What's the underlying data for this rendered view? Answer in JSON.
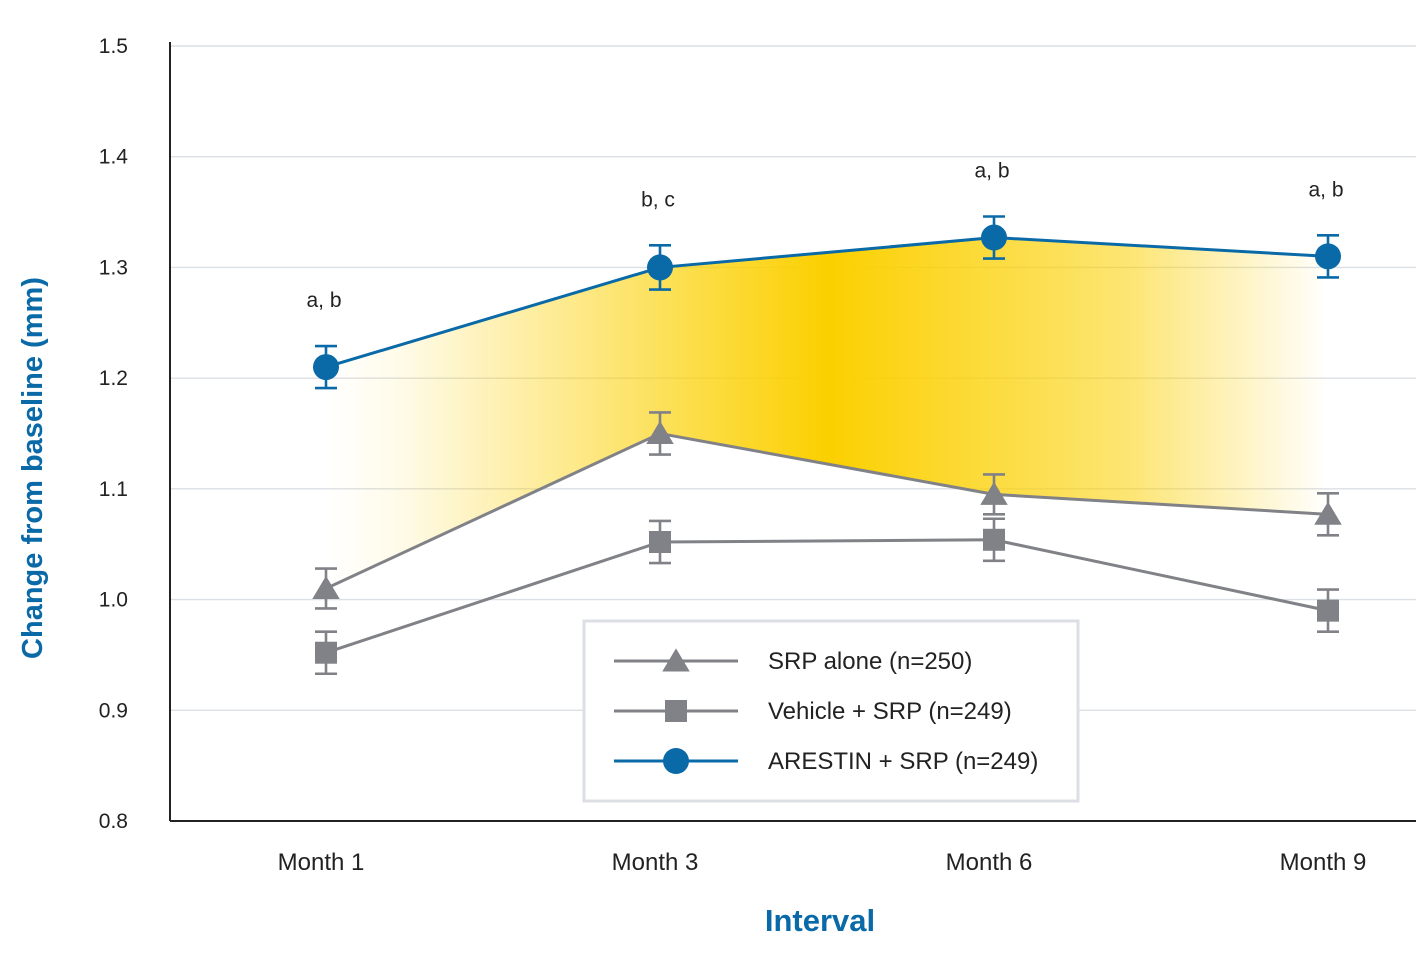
{
  "chart_data": {
    "type": "line",
    "xlabel": "Interval",
    "ylabel": "Change from baseline (mm)",
    "categories": [
      "Month 1",
      "Month 3",
      "Month 6",
      "Month 9"
    ],
    "ylim": [
      0.8,
      1.5
    ],
    "yticks": [
      "0.8",
      "0.9",
      "1.0",
      "1.1",
      "1.2",
      "1.3",
      "1.4",
      "1.5"
    ],
    "grid": true,
    "legend_position": "bottom-center",
    "annotations": [
      "a, b",
      "b, c",
      "a, b",
      "a, b"
    ],
    "highlight_band": {
      "between": [
        "ARESTIN + SRP (n=249)",
        "SRP alone (n=250)"
      ],
      "color": "#fbd000"
    },
    "series": [
      {
        "name": "SRP alone (n=250)",
        "marker": "triangle",
        "color": "#808287",
        "values": [
          1.01,
          1.15,
          1.095,
          1.077
        ],
        "error": [
          0.018,
          0.019,
          0.018,
          0.019
        ]
      },
      {
        "name": "Vehicle + SRP (n=249)",
        "marker": "square",
        "color": "#808287",
        "values": [
          0.952,
          1.052,
          1.054,
          0.99
        ],
        "error": [
          0.019,
          0.019,
          0.019,
          0.019
        ]
      },
      {
        "name": "ARESTIN + SRP (n=249)",
        "marker": "circle",
        "color": "#0a6aa8",
        "values": [
          1.21,
          1.3,
          1.327,
          1.31
        ],
        "error": [
          0.019,
          0.02,
          0.019,
          0.019
        ]
      }
    ]
  }
}
